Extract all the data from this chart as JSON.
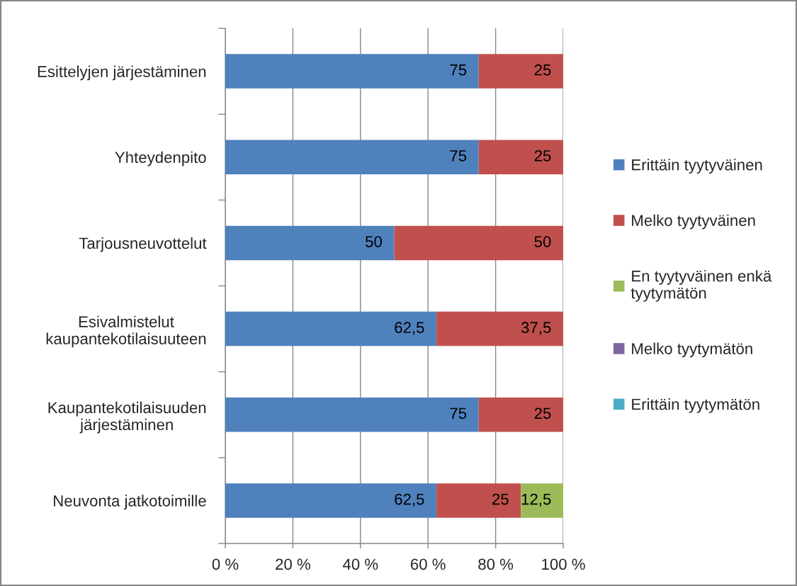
{
  "chart_data": {
    "type": "bar",
    "orientation": "horizontal",
    "stacked": true,
    "categories": [
      "Esittelyjen järjestäminen",
      "Yhteydenpito",
      "Tarjousneuvottelut",
      "Esivalmistelut\nkaupantekotilaisuuteen",
      "Kaupantekotilaisuuden\njärjestäminen",
      "Neuvonta jatkotoimille"
    ],
    "series": [
      {
        "name": "Erittäin tyytyväinen",
        "color": "#4f81bd",
        "values": [
          75,
          75,
          50,
          62.5,
          75,
          62.5
        ],
        "value_labels": [
          "75",
          "75",
          "50",
          "62,5",
          "75",
          "62,5"
        ]
      },
      {
        "name": "Melko tyytyväinen",
        "color": "#c0504d",
        "values": [
          25,
          25,
          50,
          37.5,
          25,
          25
        ],
        "value_labels": [
          "25",
          "25",
          "50",
          "37,5",
          "25",
          "25"
        ]
      },
      {
        "name": "En tyytyväinen enkä\ntyytymätön",
        "color": "#9bbb59",
        "values": [
          null,
          null,
          null,
          null,
          null,
          12.5
        ],
        "value_labels": [
          null,
          null,
          null,
          null,
          null,
          "12,5"
        ]
      },
      {
        "name": "Melko tyytymätön",
        "color": "#8064a2",
        "values": [
          null,
          null,
          null,
          null,
          null,
          null
        ]
      },
      {
        "name": "Erittäin tyytymätön",
        "color": "#4bacc6",
        "values": [
          null,
          null,
          null,
          null,
          null,
          null
        ]
      }
    ],
    "xlim": [
      0,
      100
    ],
    "xticks": [
      {
        "value": 0,
        "label": "0 %"
      },
      {
        "value": 20,
        "label": "20 %"
      },
      {
        "value": 40,
        "label": "40 %"
      },
      {
        "value": 60,
        "label": "60 %"
      },
      {
        "value": 80,
        "label": "80 %"
      },
      {
        "value": 100,
        "label": "100 %"
      }
    ],
    "grid": "x",
    "legend": "right"
  }
}
